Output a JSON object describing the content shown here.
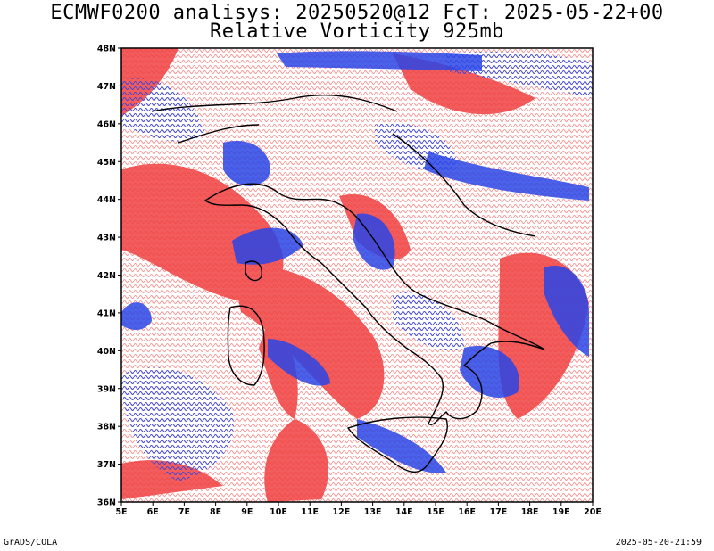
{
  "header": {
    "title_line1": "ECMWF0200 analisys: 20250520@12 FcT: 2025-05-22+00",
    "title_line2": "Relative Vorticity 925mb"
  },
  "map": {
    "extent": {
      "lon_min": 5,
      "lon_max": 20,
      "lat_min": 36,
      "lat_max": 48
    },
    "lat_labels": [
      "36N",
      "37N",
      "38N",
      "39N",
      "40N",
      "41N",
      "42N",
      "43N",
      "44N",
      "45N",
      "46N",
      "47N",
      "48N"
    ],
    "lon_labels": [
      "5E",
      "6E",
      "7E",
      "8E",
      "9E",
      "10E",
      "11E",
      "12E",
      "13E",
      "14E",
      "15E",
      "16E",
      "17E",
      "18E",
      "19E",
      "20E"
    ],
    "colors": {
      "positive_vorticity": "#f04040",
      "negative_vorticity": "#2a45e6",
      "zero_contour": "#d080a0",
      "coastline": "#000000",
      "border": "#000000"
    }
  },
  "footer": {
    "credit": "GrADS/COLA",
    "timestamp": "2025-05-20-21:59"
  }
}
